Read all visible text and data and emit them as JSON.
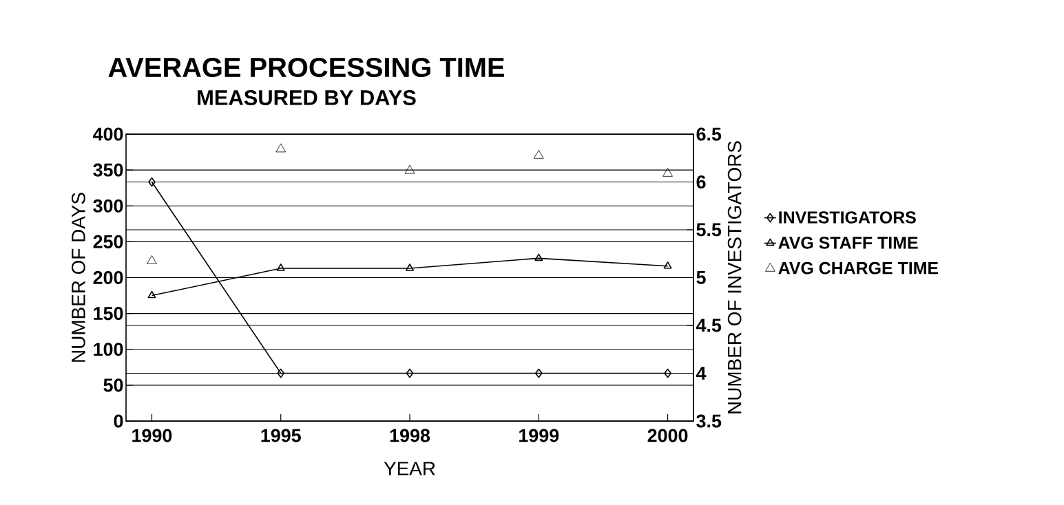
{
  "chart_data": {
    "type": "line",
    "title": "AVERAGE PROCESSING TIME",
    "subtitle": "MEASURED BY DAYS",
    "xlabel": "YEAR",
    "ylabel": "NUMBER OF DAYS",
    "y2label": "NUMBER OF INVESTIGATORS",
    "categories": [
      "1990",
      "1995",
      "1998",
      "1999",
      "2000"
    ],
    "series": [
      {
        "name": "INVESTIGATORS",
        "color": "#000000",
        "axis": "y2",
        "marker": "diamond",
        "values": [
          6,
          4,
          4,
          4,
          4
        ]
      },
      {
        "name": "AVG STAFF TIME",
        "color": "#000000",
        "marker": "triangle",
        "values": [
          175,
          213,
          213,
          227,
          216
        ]
      },
      {
        "name": "AVG CHARGE TIME",
        "color": "#000000",
        "type": "scatter",
        "marker": "triangle",
        "values": [
          223,
          379,
          349,
          370,
          345
        ]
      }
    ],
    "ylim": [
      0,
      400
    ],
    "yticks": [
      0,
      50,
      100,
      150,
      200,
      250,
      300,
      350,
      400
    ],
    "y2lim": [
      3.5,
      6.5
    ],
    "y2ticks": [
      3.5,
      4,
      4.5,
      5,
      5.5,
      6,
      6.5
    ],
    "grid": "y",
    "legend": "right"
  }
}
